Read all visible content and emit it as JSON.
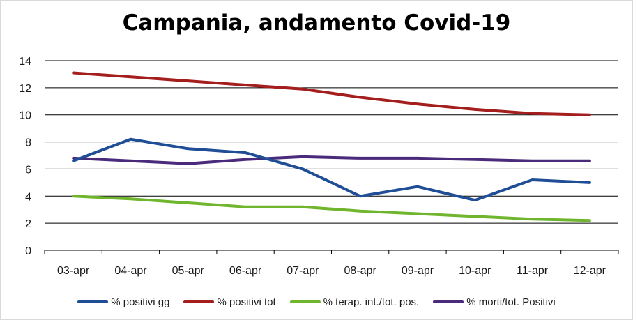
{
  "chart_data": {
    "type": "line",
    "title": "Campania, andamento Covid-19",
    "xlabel": "",
    "ylabel": "",
    "categories": [
      "03-apr",
      "04-apr",
      "05-apr",
      "06-apr",
      "07-apr",
      "08-apr",
      "09-apr",
      "10-apr",
      "11-apr",
      "12-apr"
    ],
    "ylim": [
      0,
      14
    ],
    "yticks": [
      0,
      2,
      4,
      6,
      8,
      10,
      12,
      14
    ],
    "grid": true,
    "legend_position": "bottom",
    "series": [
      {
        "name": "% positivi gg",
        "color": "#1f4e96",
        "values": [
          6.6,
          8.2,
          7.5,
          7.2,
          6.0,
          4.0,
          4.7,
          3.7,
          5.2,
          5.0
        ]
      },
      {
        "name": "% positivi tot",
        "color": "#a51e1e",
        "values": [
          13.1,
          12.8,
          12.5,
          12.2,
          11.9,
          11.3,
          10.8,
          10.4,
          10.1,
          10.0
        ]
      },
      {
        "name": "% terap. int./tot. pos.",
        "color": "#6fb52e",
        "values": [
          4.0,
          3.8,
          3.5,
          3.2,
          3.2,
          2.9,
          2.7,
          2.5,
          2.3,
          2.2
        ]
      },
      {
        "name": "% morti/tot. Positivi",
        "color": "#4a2a7a",
        "values": [
          6.8,
          6.6,
          6.4,
          6.7,
          6.9,
          6.8,
          6.8,
          6.7,
          6.6,
          6.6
        ]
      }
    ]
  }
}
